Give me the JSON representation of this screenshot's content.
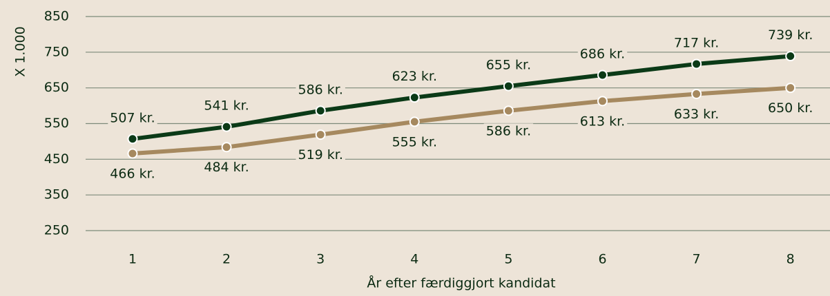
{
  "chart_data": {
    "type": "line",
    "y_axis_label": "X 1.000",
    "x_axis_label": "År efter færdiggjort kandidat",
    "categories": [
      "1",
      "2",
      "3",
      "4",
      "5",
      "6",
      "7",
      "8"
    ],
    "ylim": [
      250,
      850
    ],
    "yticks": [
      250,
      350,
      450,
      550,
      650,
      750,
      850
    ],
    "grid": true,
    "series": [
      {
        "color": "#0b3a17",
        "values": [
          507,
          541,
          586,
          623,
          655,
          686,
          717,
          739
        ],
        "value_labels": [
          "507 kr.",
          "541 kr.",
          "586 kr.",
          "623 kr.",
          "655 kr.",
          "686 kr.",
          "717 kr.",
          "739 kr."
        ]
      },
      {
        "color": "#a6895f",
        "values": [
          466,
          484,
          519,
          555,
          586,
          613,
          633,
          650
        ],
        "value_labels": [
          "466 kr.",
          "484 kr.",
          "519 kr.",
          "555 kr.",
          "586 kr.",
          "613 kr.",
          "633 kr.",
          "650 kr."
        ]
      }
    ]
  }
}
